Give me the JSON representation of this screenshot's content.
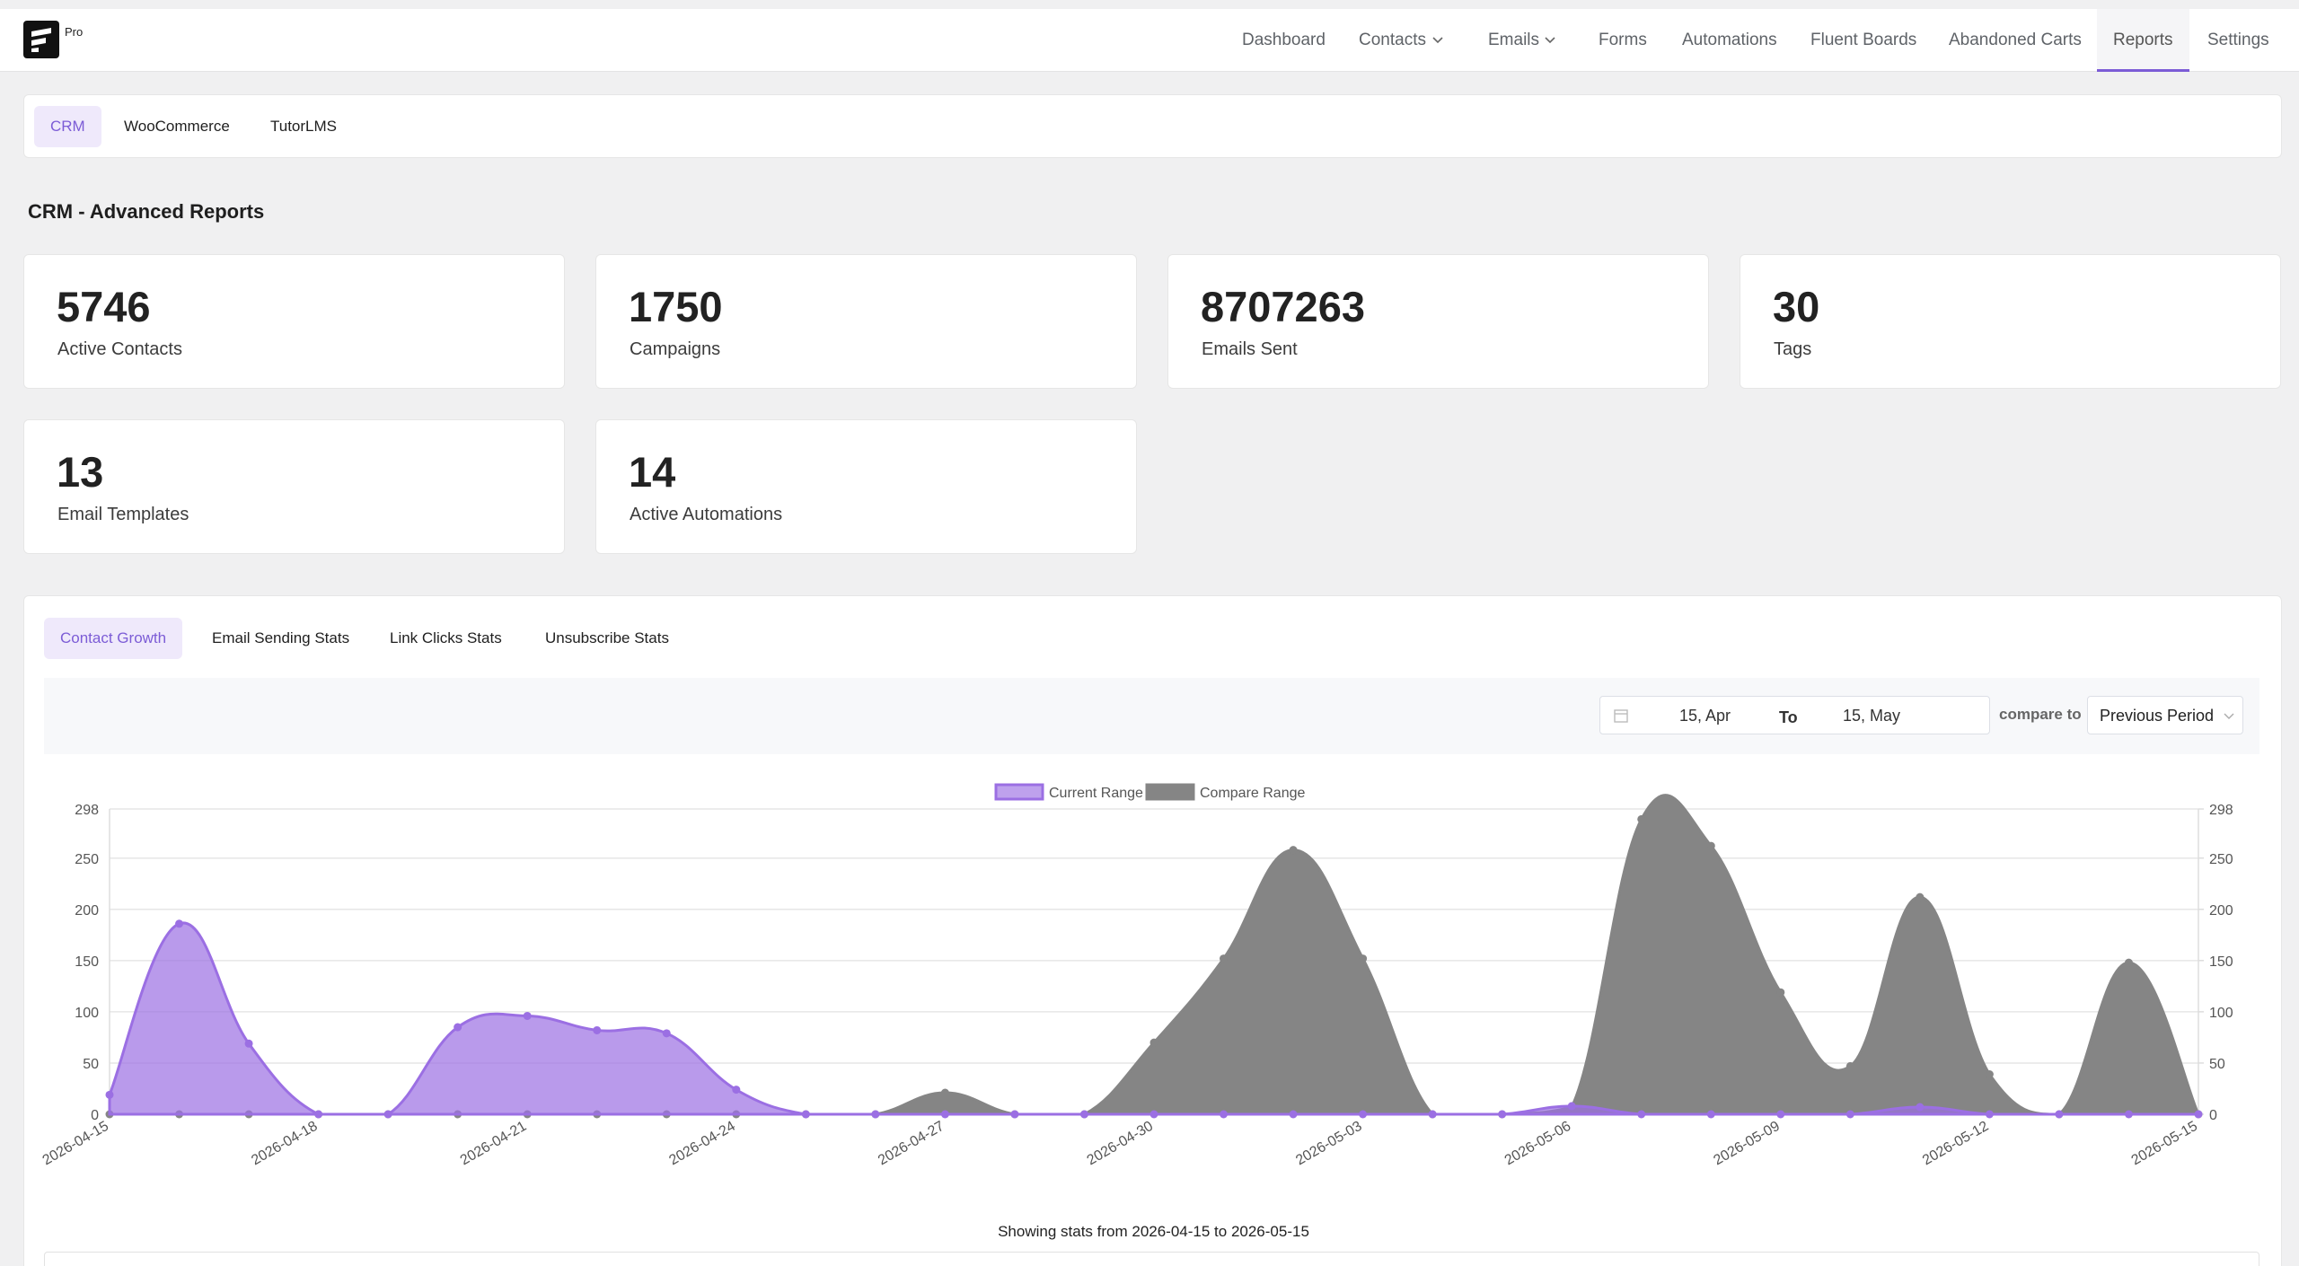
{
  "nav": {
    "badge": "Pro",
    "items": [
      "Dashboard",
      "Contacts",
      "Emails",
      "Forms",
      "Automations",
      "Fluent Boards",
      "Abandoned Carts",
      "Reports",
      "Settings"
    ]
  },
  "report_tabs": [
    "CRM",
    "WooCommerce",
    "TutorLMS"
  ],
  "heading": "CRM - Advanced Reports",
  "stats": [
    {
      "value": 5746,
      "label": "Active Contacts"
    },
    {
      "value": 1750,
      "label": "Campaigns"
    },
    {
      "value": 8707263,
      "label": "Emails Sent"
    },
    {
      "value": 30,
      "label": "Tags"
    },
    {
      "value": 13,
      "label": "Email Templates"
    },
    {
      "value": 14,
      "label": "Active Automations"
    }
  ],
  "chart_tabs": [
    "Contact Growth",
    "Email Sending Stats",
    "Link Clicks Stats",
    "Unsubscribe Stats"
  ],
  "filter": {
    "start": "15, Apr",
    "to": "To",
    "end": "15, May",
    "compare_label": "compare to",
    "compare_option": "Previous Period"
  },
  "chart_data": {
    "type": "area",
    "categories": [
      "2026-04-15",
      null,
      null,
      "2026-04-18",
      null,
      null,
      "2026-04-21",
      null,
      null,
      "2026-04-24",
      null,
      null,
      "2026-04-27",
      null,
      null,
      "2026-04-30",
      null,
      null,
      "2026-05-03",
      null,
      null,
      "2026-05-06",
      null,
      null,
      "2026-05-09",
      null,
      null,
      "2026-05-12",
      null,
      null,
      "2026-05-15"
    ],
    "series": [
      {
        "name": "Current Range",
        "color": "#9b6fe3",
        "values": [
          19,
          186,
          69,
          0,
          0,
          85,
          96,
          82,
          79,
          24,
          0,
          0,
          0,
          0,
          0,
          0,
          0,
          0,
          0,
          0,
          0,
          8,
          0,
          0,
          0,
          0,
          7,
          0,
          0,
          0,
          0
        ]
      },
      {
        "name": "Compare Range",
        "color": "#858585",
        "values": [
          0,
          0,
          0,
          0,
          0,
          0,
          0,
          0,
          0,
          0,
          0,
          0,
          21,
          0,
          0,
          70,
          152,
          258,
          152,
          0,
          0,
          7,
          288,
          262,
          119,
          47,
          212,
          39,
          0,
          148,
          0
        ]
      }
    ],
    "ylim": [
      0,
      298
    ],
    "yticks": [
      0,
      50,
      100,
      150,
      200,
      250,
      298
    ],
    "y2lim": [
      0,
      298
    ],
    "y2ticks": [
      0,
      50,
      100,
      150,
      200,
      250,
      298
    ],
    "grid": true,
    "legend": "top"
  },
  "footer": "Showing stats from 2026-04-15 to 2026-05-15"
}
